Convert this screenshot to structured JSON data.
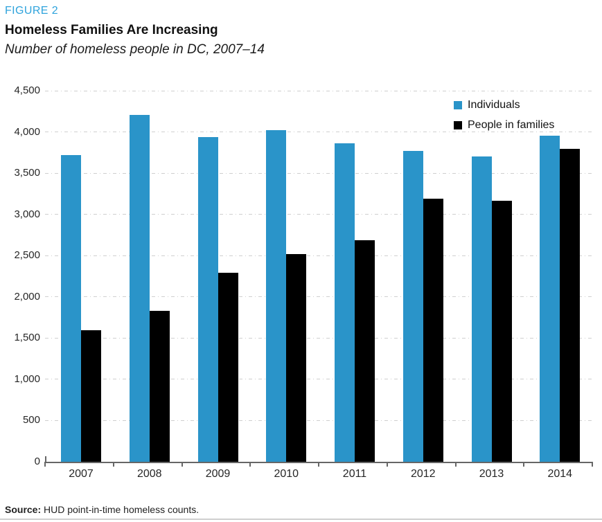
{
  "header": {
    "figure_label": "FIGURE 2"
  },
  "chart_data": {
    "type": "bar",
    "title": "Homeless Families Are Increasing",
    "subtitle": "Number of homeless people in DC, 2007–14",
    "categories": [
      "2007",
      "2008",
      "2009",
      "2010",
      "2011",
      "2012",
      "2013",
      "2014"
    ],
    "series": [
      {
        "name": "Individuals",
        "color": "#2A94C9",
        "values": [
          3721,
          4210,
          3938,
          4018,
          3858,
          3767,
          3699,
          3953
        ]
      },
      {
        "name": "People in families",
        "color": "#000000",
        "values": [
          1599,
          1834,
          2290,
          2521,
          2688,
          3187,
          3166,
          3795
        ]
      }
    ],
    "xlabel": "",
    "ylabel": "",
    "ylim": [
      0,
      4500
    ],
    "ytick_step": 500,
    "ytick_labels": [
      "0",
      "500",
      "1,000",
      "1,500",
      "2,000",
      "2,500",
      "3,000",
      "3,500",
      "4,000",
      "4,500"
    ],
    "grid": "horizontal-dashed",
    "legend_position": "top-right"
  },
  "footer": {
    "source_label": "Source:",
    "source_text": " HUD point-in-time homeless counts."
  },
  "colors": {
    "figure_label": "#2EA3DC",
    "bar_blue": "#2A94C9",
    "bar_black": "#000000",
    "gridline": "#CFCFCF",
    "axis_line": "#666666",
    "bottom_rule": "#CFCFCF"
  }
}
